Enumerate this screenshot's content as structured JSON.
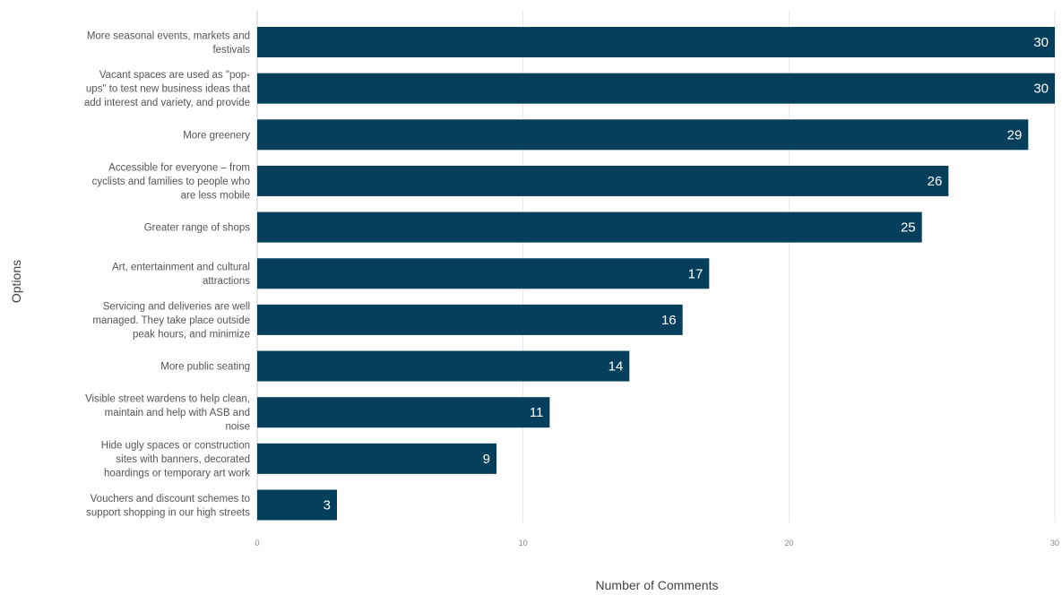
{
  "chart_data": {
    "type": "bar",
    "orientation": "horizontal",
    "categories": [
      [
        "More seasonal events, markets and",
        "festivals"
      ],
      [
        "Vacant spaces are used as \"pop-",
        "ups\" to test new business ideas that",
        "add interest and variety, and provide"
      ],
      [
        "More greenery"
      ],
      [
        "Accessible for everyone – from",
        "cyclists and families to people who",
        "are less mobile"
      ],
      [
        "Greater range of shops"
      ],
      [
        "Art, entertainment and cultural",
        "attractions"
      ],
      [
        "Servicing and deliveries are well",
        "managed. They take place outside",
        "peak hours, and minimize"
      ],
      [
        "More public seating"
      ],
      [
        "Visible street wardens to help clean,",
        "maintain and help with ASB and",
        "noise"
      ],
      [
        "Hide ugly spaces or construction",
        "sites with banners, decorated",
        "hoardings or temporary art work"
      ],
      [
        "Vouchers and discount schemes to",
        "support shopping in our high streets"
      ]
    ],
    "values": [
      30,
      30,
      29,
      26,
      25,
      17,
      16,
      14,
      11,
      9,
      3
    ],
    "xlabel": "Number of Comments",
    "ylabel": "Options",
    "xlim": [
      0,
      30
    ],
    "xticks": [
      0,
      10,
      20,
      30
    ],
    "grid": true,
    "colors": {
      "bar": "#063f5c",
      "grid": "#e6e6e6",
      "axis": "#cccccc",
      "value_text": "#ffffff"
    }
  }
}
